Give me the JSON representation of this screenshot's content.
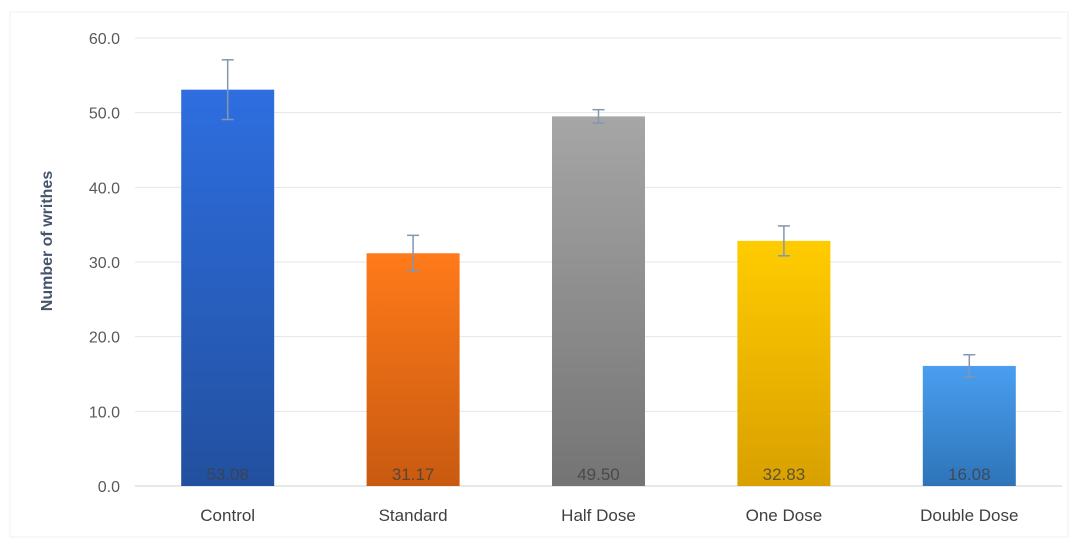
{
  "chart_data": {
    "type": "bar",
    "title": "",
    "xlabel": "",
    "ylabel": "Number of writhes",
    "ylim": [
      0,
      60
    ],
    "yticks": [
      "0.0",
      "10.0",
      "20.0",
      "30.0",
      "40.0",
      "50.0",
      "60.0"
    ],
    "grid": true,
    "categories": [
      "Control",
      "Standard",
      "Half Dose",
      "One Dose",
      "Double Dose"
    ],
    "values": [
      53.08,
      31.17,
      49.5,
      32.83,
      16.08
    ],
    "data_labels": [
      "53.08",
      "31.17",
      "49.50",
      "32.83",
      "16.08"
    ],
    "errors": [
      4.0,
      2.4,
      0.9,
      2.0,
      1.5
    ],
    "colors": [
      {
        "top": "#2e6ee0",
        "bottom": "#22509f"
      },
      {
        "top": "#ff7a1a",
        "bottom": "#c85a10"
      },
      {
        "top": "#a6a6a6",
        "bottom": "#747474"
      },
      {
        "top": "#ffcc00",
        "bottom": "#d9a000"
      },
      {
        "top": "#4a9ef0",
        "bottom": "#2e74b8"
      }
    ],
    "error_bar_color": "#8496b0",
    "grid_color": "#e6e6e6"
  }
}
